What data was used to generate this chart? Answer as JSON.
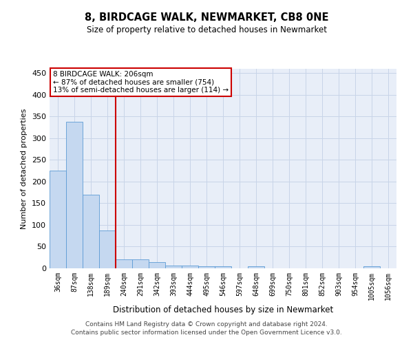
{
  "title": "8, BIRDCAGE WALK, NEWMARKET, CB8 0NE",
  "subtitle": "Size of property relative to detached houses in Newmarket",
  "xlabel": "Distribution of detached houses by size in Newmarket",
  "ylabel": "Number of detached properties",
  "categories": [
    "36sqm",
    "87sqm",
    "138sqm",
    "189sqm",
    "240sqm",
    "291sqm",
    "342sqm",
    "393sqm",
    "444sqm",
    "495sqm",
    "546sqm",
    "597sqm",
    "648sqm",
    "699sqm",
    "750sqm",
    "801sqm",
    "852sqm",
    "903sqm",
    "954sqm",
    "1005sqm",
    "1056sqm"
  ],
  "values": [
    226,
    338,
    170,
    88,
    20,
    20,
    15,
    7,
    7,
    5,
    5,
    0,
    5,
    0,
    0,
    0,
    0,
    0,
    0,
    5,
    0
  ],
  "bar_color": "#c5d8f0",
  "bar_edge_color": "#5b9bd5",
  "red_line_x": 3.5,
  "annotation_text_line1": "8 BIRDCAGE WALK: 206sqm",
  "annotation_text_line2": "← 87% of detached houses are smaller (754)",
  "annotation_text_line3": "13% of semi-detached houses are larger (114) →",
  "annotation_box_color": "#ffffff",
  "annotation_box_edge_color": "#cc0000",
  "vline_color": "#cc0000",
  "ylim": [
    0,
    460
  ],
  "yticks": [
    0,
    50,
    100,
    150,
    200,
    250,
    300,
    350,
    400,
    450
  ],
  "grid_color": "#c8d4e8",
  "bg_color": "#e8eef8",
  "footer_line1": "Contains HM Land Registry data © Crown copyright and database right 2024.",
  "footer_line2": "Contains public sector information licensed under the Open Government Licence v3.0."
}
